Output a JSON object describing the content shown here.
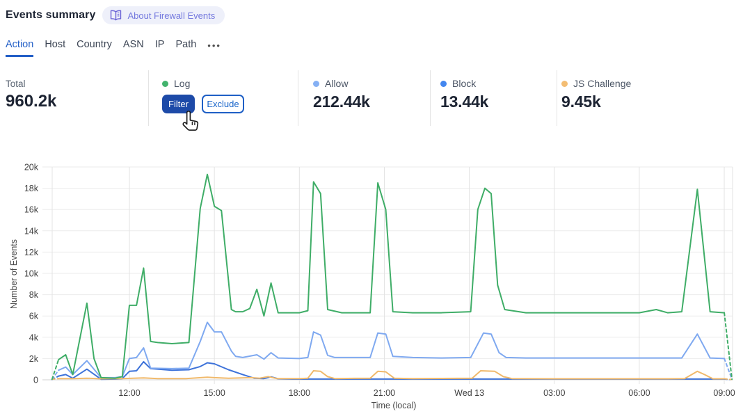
{
  "header": {
    "title": "Events summary",
    "badge": {
      "icon": "open-book-icon",
      "label": "About Firewall Events"
    }
  },
  "tabs": {
    "items": [
      {
        "label": "Action",
        "active": true
      },
      {
        "label": "Host",
        "active": false
      },
      {
        "label": "Country",
        "active": false
      },
      {
        "label": "ASN",
        "active": false
      },
      {
        "label": "IP",
        "active": false
      },
      {
        "label": "Path",
        "active": false
      }
    ],
    "more_label": "•••"
  },
  "stats": {
    "columns": [
      {
        "type": "total",
        "label": "Total",
        "value": "960.2k"
      },
      {
        "type": "series",
        "label": "Log",
        "dot_color": "#42b36d",
        "buttons": [
          {
            "label": "Filter",
            "style": "primary"
          },
          {
            "label": "Exclude",
            "style": "secondary"
          }
        ]
      },
      {
        "type": "series",
        "label": "Allow",
        "dot_color": "#85b0f4",
        "value": "212.44k"
      },
      {
        "type": "series",
        "label": "Block",
        "dot_color": "#4386ef",
        "value": "13.44k"
      },
      {
        "type": "series",
        "label": "JS Challenge",
        "dot_color": "#f3bd73",
        "value": "9.45k"
      }
    ]
  },
  "chart_data": {
    "type": "line",
    "title": "",
    "xlabel": "Time (local)",
    "ylabel": "Number of Events",
    "x_unit": "hours since Tue 00:00 local; 24 = Wed 13 00:00",
    "x_range_h": [
      9.25,
      33.3
    ],
    "x_ticks": [
      {
        "h": 12,
        "label": "12:00"
      },
      {
        "h": 15,
        "label": "15:00"
      },
      {
        "h": 18,
        "label": "18:00"
      },
      {
        "h": 21,
        "label": "21:00"
      },
      {
        "h": 24,
        "label": "Wed 13"
      },
      {
        "h": 27,
        "label": "03:00"
      },
      {
        "h": 30,
        "label": "06:00"
      },
      {
        "h": 33,
        "label": "09:00"
      }
    ],
    "y_unit": "thousands of events",
    "ylim_k": [
      0,
      20
    ],
    "y_ticks_k": [
      0,
      2,
      4,
      6,
      8,
      10,
      12,
      14,
      16,
      18,
      20
    ],
    "grid": true,
    "legend_position": "in-stats-row",
    "edge_segments_dashed": "first and last segment of every series (partial interval)",
    "draw_order": [
      "Block",
      "JS Challenge",
      "Allow",
      "Log"
    ],
    "series": [
      {
        "name": "Log",
        "color": "#3fad67",
        "points_h_k": [
          [
            9.27,
            0.05
          ],
          [
            9.5,
            1.9
          ],
          [
            9.75,
            2.35
          ],
          [
            10.0,
            0.5
          ],
          [
            10.5,
            7.2
          ],
          [
            10.75,
            2.0
          ],
          [
            11.0,
            0.2
          ],
          [
            11.5,
            0.15
          ],
          [
            11.75,
            0.3
          ],
          [
            12.0,
            7.0
          ],
          [
            12.25,
            7.0
          ],
          [
            12.5,
            10.5
          ],
          [
            12.75,
            3.6
          ],
          [
            13.0,
            3.5
          ],
          [
            13.5,
            3.4
          ],
          [
            14.1,
            3.5
          ],
          [
            14.5,
            16.1
          ],
          [
            14.75,
            19.3
          ],
          [
            15.0,
            16.3
          ],
          [
            15.25,
            15.9
          ],
          [
            15.6,
            6.6
          ],
          [
            15.75,
            6.4
          ],
          [
            16.0,
            6.4
          ],
          [
            16.25,
            6.7
          ],
          [
            16.5,
            8.5
          ],
          [
            16.75,
            6.0
          ],
          [
            17.0,
            9.1
          ],
          [
            17.25,
            6.3
          ],
          [
            18.0,
            6.3
          ],
          [
            18.3,
            6.5
          ],
          [
            18.5,
            18.6
          ],
          [
            18.75,
            17.5
          ],
          [
            19.0,
            6.6
          ],
          [
            19.5,
            6.3
          ],
          [
            20.5,
            6.3
          ],
          [
            20.77,
            18.5
          ],
          [
            21.05,
            16.0
          ],
          [
            21.3,
            6.4
          ],
          [
            22.0,
            6.3
          ],
          [
            23.0,
            6.3
          ],
          [
            24.05,
            6.4
          ],
          [
            24.3,
            16.0
          ],
          [
            24.55,
            18.0
          ],
          [
            24.77,
            17.5
          ],
          [
            25.0,
            8.9
          ],
          [
            25.25,
            6.6
          ],
          [
            26.0,
            6.3
          ],
          [
            27.0,
            6.3
          ],
          [
            28.0,
            6.3
          ],
          [
            29.0,
            6.3
          ],
          [
            30.0,
            6.3
          ],
          [
            30.6,
            6.6
          ],
          [
            31.0,
            6.3
          ],
          [
            31.5,
            6.4
          ],
          [
            32.05,
            17.9
          ],
          [
            32.5,
            6.4
          ],
          [
            33.0,
            6.3
          ],
          [
            33.27,
            0.05
          ]
        ]
      },
      {
        "name": "Allow",
        "color": "#7fa9f0",
        "points_h_k": [
          [
            9.27,
            0.05
          ],
          [
            9.5,
            0.9
          ],
          [
            9.75,
            1.2
          ],
          [
            10.0,
            0.5
          ],
          [
            10.5,
            1.8
          ],
          [
            11.0,
            0.2
          ],
          [
            11.5,
            0.2
          ],
          [
            11.75,
            0.3
          ],
          [
            12.0,
            2.0
          ],
          [
            12.25,
            2.1
          ],
          [
            12.5,
            3.0
          ],
          [
            12.75,
            1.1
          ],
          [
            13.5,
            1.05
          ],
          [
            14.1,
            1.1
          ],
          [
            14.5,
            3.6
          ],
          [
            14.75,
            5.4
          ],
          [
            15.0,
            4.5
          ],
          [
            15.25,
            4.5
          ],
          [
            15.6,
            2.7
          ],
          [
            15.75,
            2.2
          ],
          [
            16.0,
            2.1
          ],
          [
            16.5,
            2.35
          ],
          [
            16.75,
            1.95
          ],
          [
            17.0,
            2.55
          ],
          [
            17.25,
            2.05
          ],
          [
            18.0,
            2.0
          ],
          [
            18.3,
            2.1
          ],
          [
            18.5,
            4.5
          ],
          [
            18.75,
            4.2
          ],
          [
            19.0,
            2.3
          ],
          [
            19.25,
            2.1
          ],
          [
            20.5,
            2.1
          ],
          [
            20.77,
            4.4
          ],
          [
            21.05,
            4.3
          ],
          [
            21.3,
            2.2
          ],
          [
            22.0,
            2.1
          ],
          [
            23.0,
            2.05
          ],
          [
            24.05,
            2.1
          ],
          [
            24.5,
            4.4
          ],
          [
            24.77,
            4.3
          ],
          [
            25.05,
            2.55
          ],
          [
            25.3,
            2.1
          ],
          [
            26.0,
            2.05
          ],
          [
            28.0,
            2.05
          ],
          [
            30.0,
            2.05
          ],
          [
            31.5,
            2.05
          ],
          [
            32.05,
            4.3
          ],
          [
            32.5,
            2.05
          ],
          [
            33.0,
            2.0
          ],
          [
            33.27,
            0.05
          ]
        ]
      },
      {
        "name": "Block",
        "color": "#3d72d9",
        "points_h_k": [
          [
            9.27,
            0.03
          ],
          [
            9.5,
            0.35
          ],
          [
            9.75,
            0.5
          ],
          [
            10.0,
            0.15
          ],
          [
            10.5,
            1.0
          ],
          [
            11.0,
            0.05
          ],
          [
            11.5,
            0.07
          ],
          [
            11.75,
            0.12
          ],
          [
            12.0,
            0.8
          ],
          [
            12.25,
            0.85
          ],
          [
            12.5,
            1.7
          ],
          [
            12.75,
            1.05
          ],
          [
            13.5,
            0.9
          ],
          [
            14.1,
            0.95
          ],
          [
            14.5,
            1.25
          ],
          [
            14.75,
            1.6
          ],
          [
            15.0,
            1.5
          ],
          [
            15.5,
            0.95
          ],
          [
            16.0,
            0.5
          ],
          [
            16.4,
            0.15
          ],
          [
            16.75,
            0.12
          ],
          [
            17.0,
            0.28
          ],
          [
            17.25,
            0.1
          ],
          [
            17.75,
            0.07
          ],
          [
            19.0,
            0.07
          ],
          [
            21.0,
            0.07
          ],
          [
            23.0,
            0.07
          ],
          [
            25.0,
            0.07
          ],
          [
            27.0,
            0.07
          ],
          [
            29.0,
            0.07
          ],
          [
            31.0,
            0.07
          ],
          [
            33.0,
            0.07
          ],
          [
            33.2,
            0.02
          ]
        ]
      },
      {
        "name": "JS Challenge",
        "color": "#f0b96b",
        "points_h_k": [
          [
            9.27,
            0.05
          ],
          [
            9.5,
            0.12
          ],
          [
            10.0,
            0.12
          ],
          [
            10.5,
            0.15
          ],
          [
            11.0,
            0.1
          ],
          [
            11.75,
            0.12
          ],
          [
            12.5,
            0.18
          ],
          [
            13.0,
            0.12
          ],
          [
            14.0,
            0.12
          ],
          [
            14.75,
            0.25
          ],
          [
            15.0,
            0.2
          ],
          [
            15.5,
            0.15
          ],
          [
            16.3,
            0.2
          ],
          [
            16.6,
            0.15
          ],
          [
            16.9,
            0.3
          ],
          [
            17.2,
            0.12
          ],
          [
            18.0,
            0.12
          ],
          [
            18.3,
            0.15
          ],
          [
            18.5,
            0.85
          ],
          [
            18.75,
            0.8
          ],
          [
            19.0,
            0.3
          ],
          [
            19.25,
            0.12
          ],
          [
            20.5,
            0.15
          ],
          [
            20.77,
            0.8
          ],
          [
            21.05,
            0.75
          ],
          [
            21.35,
            0.15
          ],
          [
            22.0,
            0.12
          ],
          [
            24.1,
            0.15
          ],
          [
            24.4,
            0.85
          ],
          [
            24.9,
            0.8
          ],
          [
            25.2,
            0.3
          ],
          [
            25.5,
            0.12
          ],
          [
            27.0,
            0.1
          ],
          [
            29.0,
            0.1
          ],
          [
            31.0,
            0.1
          ],
          [
            31.6,
            0.12
          ],
          [
            32.05,
            0.8
          ],
          [
            32.3,
            0.5
          ],
          [
            32.6,
            0.1
          ],
          [
            33.0,
            0.1
          ],
          [
            33.25,
            0.03
          ]
        ]
      }
    ]
  },
  "cursor": {
    "type": "hand-pointer",
    "over": "Filter button"
  },
  "colors": {
    "tab_active": "#2460c7",
    "grid_line": "#ebebeb",
    "grid_vline": "#e3e3e3",
    "axis_zero_line": "#d2d2d2",
    "tick_text": "#3f3f3f",
    "primary_button_bg": "#1d4aa8",
    "secondary_button_border": "#1f60c6",
    "badge_bg": "#eef0fa",
    "badge_text": "#7378de"
  }
}
